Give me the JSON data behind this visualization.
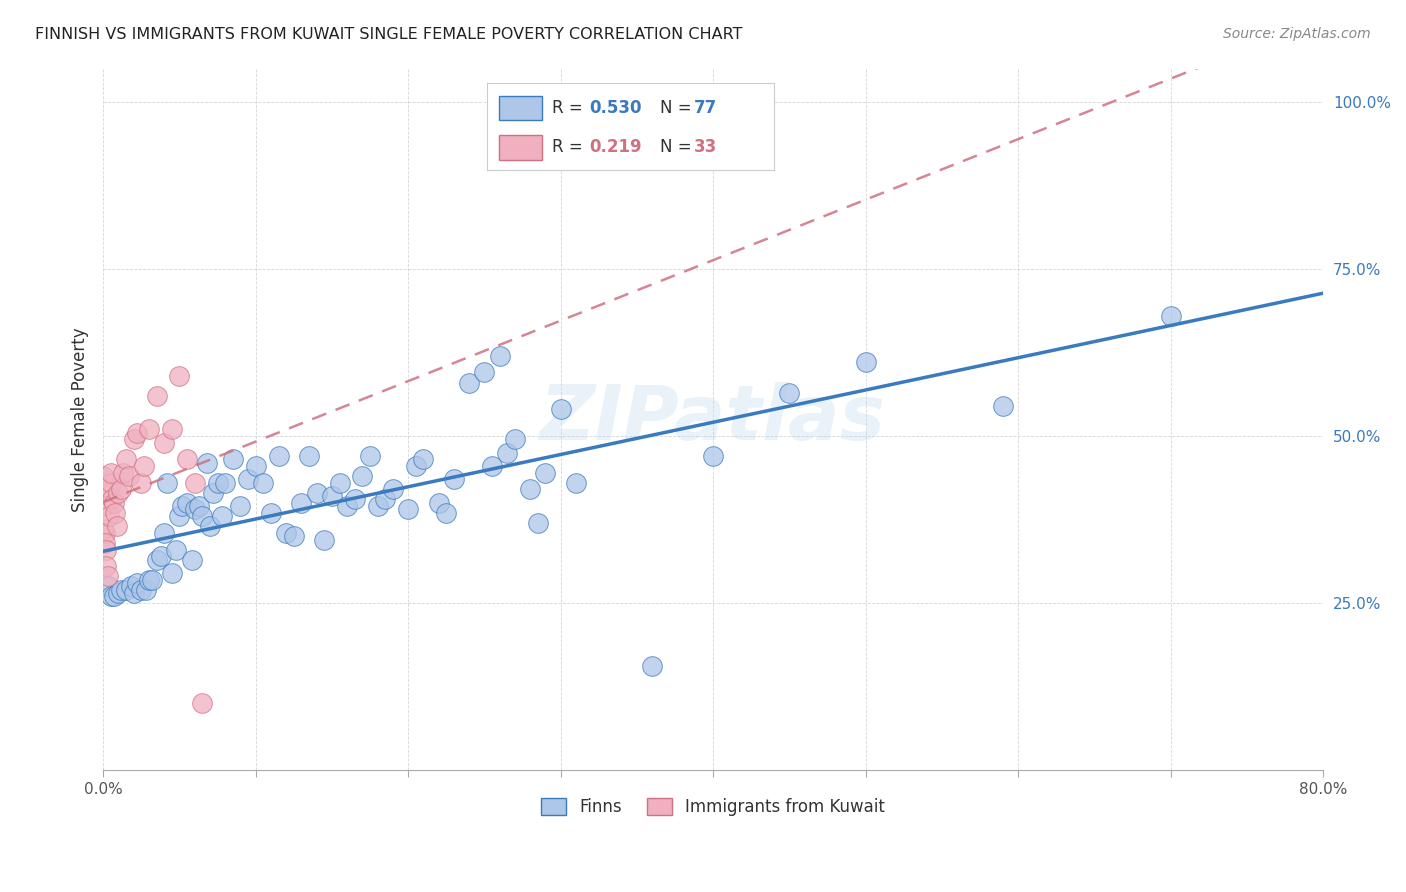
{
  "title": "FINNISH VS IMMIGRANTS FROM KUWAIT SINGLE FEMALE POVERTY CORRELATION CHART",
  "source": "Source: ZipAtlas.com",
  "ylabel": "Single Female Poverty",
  "x_min": 0.0,
  "x_max": 0.8,
  "y_min": 0.0,
  "y_max": 1.05,
  "x_ticks": [
    0.0,
    0.1,
    0.2,
    0.3,
    0.4,
    0.5,
    0.6,
    0.7,
    0.8
  ],
  "y_ticks": [
    0.0,
    0.25,
    0.5,
    0.75,
    1.0
  ],
  "watermark": "ZIPatlas",
  "legend_label_1": "Finns",
  "legend_label_2": "Immigrants from Kuwait",
  "legend_R1_val": "0.530",
  "legend_N1_val": "77",
  "legend_R2_val": "0.219",
  "legend_N2_val": "33",
  "color_finns": "#aec6e8",
  "color_kuwait": "#f0b0c0",
  "color_trend_finns": "#3a7abf",
  "color_trend_kuwait": "#d07080",
  "finns_x": [
    0.003,
    0.005,
    0.007,
    0.01,
    0.012,
    0.015,
    0.018,
    0.02,
    0.022,
    0.025,
    0.028,
    0.03,
    0.032,
    0.035,
    0.038,
    0.04,
    0.042,
    0.045,
    0.048,
    0.05,
    0.052,
    0.055,
    0.058,
    0.06,
    0.063,
    0.065,
    0.068,
    0.07,
    0.072,
    0.075,
    0.078,
    0.08,
    0.085,
    0.09,
    0.095,
    0.1,
    0.105,
    0.11,
    0.115,
    0.12,
    0.125,
    0.13,
    0.135,
    0.14,
    0.145,
    0.15,
    0.155,
    0.16,
    0.165,
    0.17,
    0.175,
    0.18,
    0.185,
    0.19,
    0.2,
    0.205,
    0.21,
    0.22,
    0.225,
    0.23,
    0.24,
    0.25,
    0.255,
    0.26,
    0.265,
    0.27,
    0.28,
    0.285,
    0.29,
    0.3,
    0.31,
    0.36,
    0.4,
    0.45,
    0.5,
    0.59,
    0.7
  ],
  "finns_y": [
    0.275,
    0.26,
    0.26,
    0.265,
    0.27,
    0.27,
    0.275,
    0.265,
    0.28,
    0.27,
    0.27,
    0.285,
    0.285,
    0.315,
    0.32,
    0.355,
    0.43,
    0.295,
    0.33,
    0.38,
    0.395,
    0.4,
    0.315,
    0.39,
    0.395,
    0.38,
    0.46,
    0.365,
    0.415,
    0.43,
    0.38,
    0.43,
    0.465,
    0.395,
    0.435,
    0.455,
    0.43,
    0.385,
    0.47,
    0.355,
    0.35,
    0.4,
    0.47,
    0.415,
    0.345,
    0.41,
    0.43,
    0.395,
    0.405,
    0.44,
    0.47,
    0.395,
    0.405,
    0.42,
    0.39,
    0.455,
    0.465,
    0.4,
    0.385,
    0.435,
    0.58,
    0.595,
    0.455,
    0.62,
    0.475,
    0.495,
    0.42,
    0.37,
    0.445,
    0.54,
    0.43,
    0.155,
    0.47,
    0.565,
    0.61,
    0.545,
    0.68
  ],
  "kuwait_x": [
    0.0,
    0.0,
    0.0,
    0.0,
    0.001,
    0.001,
    0.002,
    0.002,
    0.003,
    0.004,
    0.005,
    0.005,
    0.006,
    0.007,
    0.008,
    0.009,
    0.01,
    0.012,
    0.013,
    0.015,
    0.017,
    0.02,
    0.022,
    0.025,
    0.027,
    0.03,
    0.035,
    0.04,
    0.045,
    0.05,
    0.055,
    0.06,
    0.065
  ],
  "kuwait_y": [
    0.44,
    0.42,
    0.395,
    0.36,
    0.355,
    0.34,
    0.33,
    0.305,
    0.29,
    0.38,
    0.43,
    0.445,
    0.405,
    0.4,
    0.385,
    0.365,
    0.415,
    0.42,
    0.445,
    0.465,
    0.44,
    0.495,
    0.505,
    0.43,
    0.455,
    0.51,
    0.56,
    0.49,
    0.51,
    0.59,
    0.465,
    0.43,
    0.1
  ]
}
